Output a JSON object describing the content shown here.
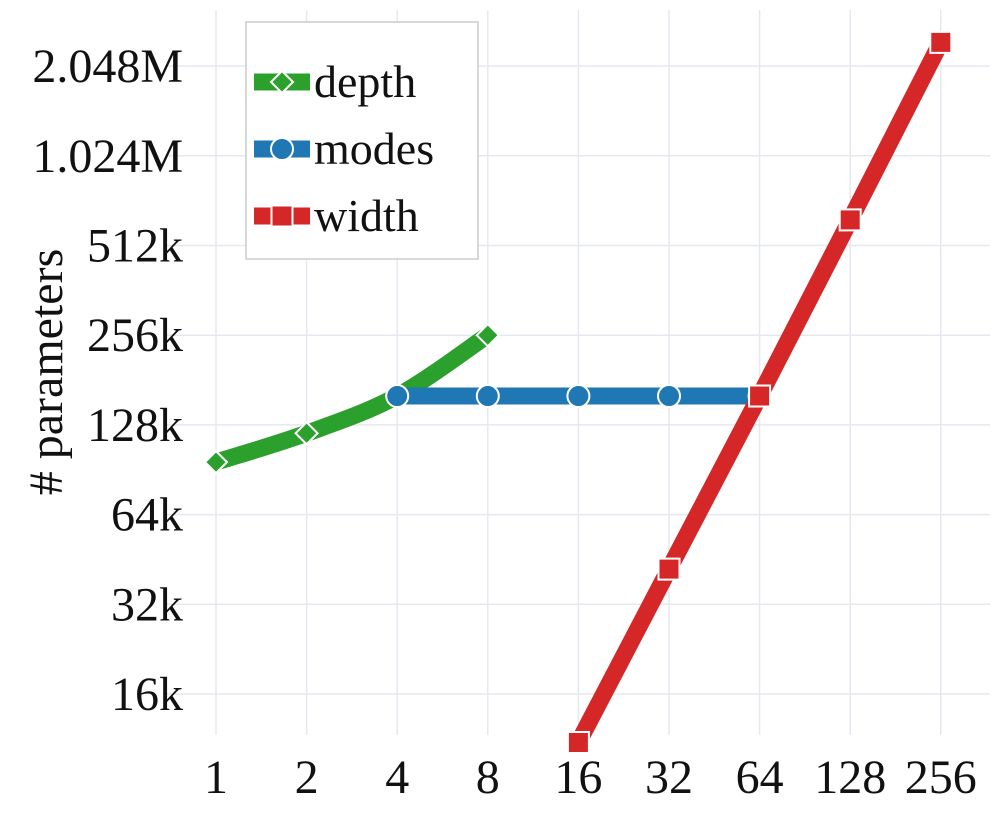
{
  "chart_data": {
    "type": "line",
    "title": "",
    "xlabel": "",
    "ylabel": "# parameters",
    "x_scale": "log2",
    "y_scale": "log2",
    "x_ticks": [
      1,
      2,
      4,
      8,
      16,
      32,
      64,
      128,
      256
    ],
    "x_tick_labels": [
      "1",
      "2",
      "4",
      "8",
      "16",
      "32",
      "64",
      "128",
      "256"
    ],
    "y_ticks": [
      16000,
      32000,
      64000,
      128000,
      256000,
      512000,
      1024000,
      2048000
    ],
    "y_tick_labels": [
      "16k",
      "32k",
      "64k",
      "128k",
      "256k",
      "512k",
      "1.024M",
      "2.048M"
    ],
    "grid": true,
    "legend_position": "top-left",
    "series": [
      {
        "name": "depth",
        "color": "#2ca02c",
        "marker": "diamond",
        "x": [
          1,
          2,
          4,
          8
        ],
        "y": [
          96000,
          120000,
          160000,
          256000
        ]
      },
      {
        "name": "modes",
        "color": "#1f77b4",
        "marker": "circle",
        "x": [
          4,
          8,
          16,
          32,
          64
        ],
        "y": [
          160000,
          160000,
          160000,
          160000,
          160000
        ]
      },
      {
        "name": "width",
        "color": "#d62728",
        "marker": "square",
        "x": [
          16,
          32,
          64,
          128,
          256
        ],
        "y": [
          11000,
          42000,
          160000,
          624000,
          2460000
        ]
      }
    ]
  }
}
